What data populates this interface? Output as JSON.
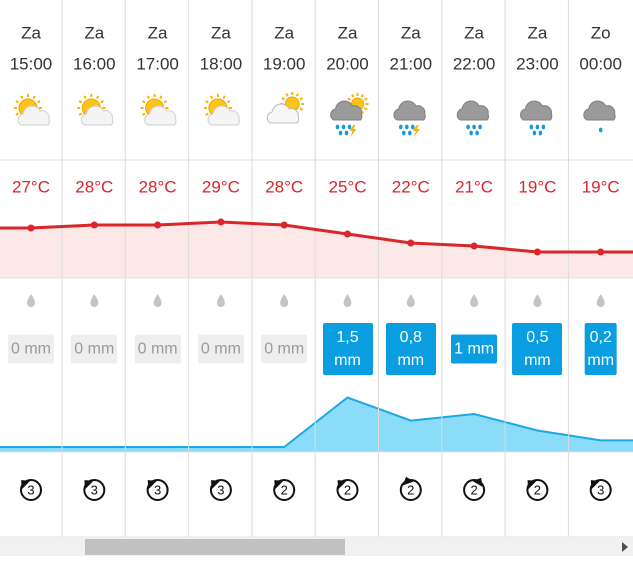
{
  "hours": [
    {
      "day": "Za",
      "time": "15:00",
      "temperature": {
        "value": 27,
        "label": "27°C"
      },
      "precipitation": {
        "value": 0,
        "label": "0 mm"
      },
      "wind": 3
    },
    {
      "day": "Za",
      "time": "16:00",
      "temperature": {
        "value": 28,
        "label": "28°C"
      },
      "precipitation": {
        "value": 0,
        "label": "0 mm"
      },
      "wind": 3
    },
    {
      "day": "Za",
      "time": "17:00",
      "temperature": {
        "value": 28,
        "label": "28°C"
      },
      "precipitation": {
        "value": 0,
        "label": "0 mm"
      },
      "wind": 3
    },
    {
      "day": "Za",
      "time": "18:00",
      "temperature": {
        "value": 29,
        "label": "29°C"
      },
      "precipitation": {
        "value": 0,
        "label": "0 mm"
      },
      "wind": 3
    },
    {
      "day": "Za",
      "time": "19:00",
      "temperature": {
        "value": 28,
        "label": "28°C"
      },
      "precipitation": {
        "value": 0,
        "label": "0 mm"
      },
      "wind": 2
    },
    {
      "day": "Za",
      "time": "20:00",
      "temperature": {
        "value": 25,
        "label": "25°C"
      },
      "precipitation": {
        "value": 1.5,
        "label": "1,5 mm"
      },
      "wind": 2
    },
    {
      "day": "Za",
      "time": "21:00",
      "temperature": {
        "value": 22,
        "label": "22°C"
      },
      "precipitation": {
        "value": 0.8,
        "label": "0,8 mm"
      },
      "wind": 2
    },
    {
      "day": "Za",
      "time": "22:00",
      "temperature": {
        "value": 21,
        "label": "21°C"
      },
      "precipitation": {
        "value": 1,
        "label": "1 mm"
      },
      "wind": 2
    },
    {
      "day": "Za",
      "time": "23:00",
      "temperature": {
        "value": 19,
        "label": "19°C"
      },
      "precipitation": {
        "value": 0.5,
        "label": "0,5 mm"
      },
      "wind": 2
    },
    {
      "day": "Zo",
      "time": "00:00",
      "temperature": {
        "value": 19,
        "label": "19°C"
      },
      "precipitation": {
        "value": 0.2,
        "label": "0,2 mm"
      },
      "wind": 3
    }
  ]
}
